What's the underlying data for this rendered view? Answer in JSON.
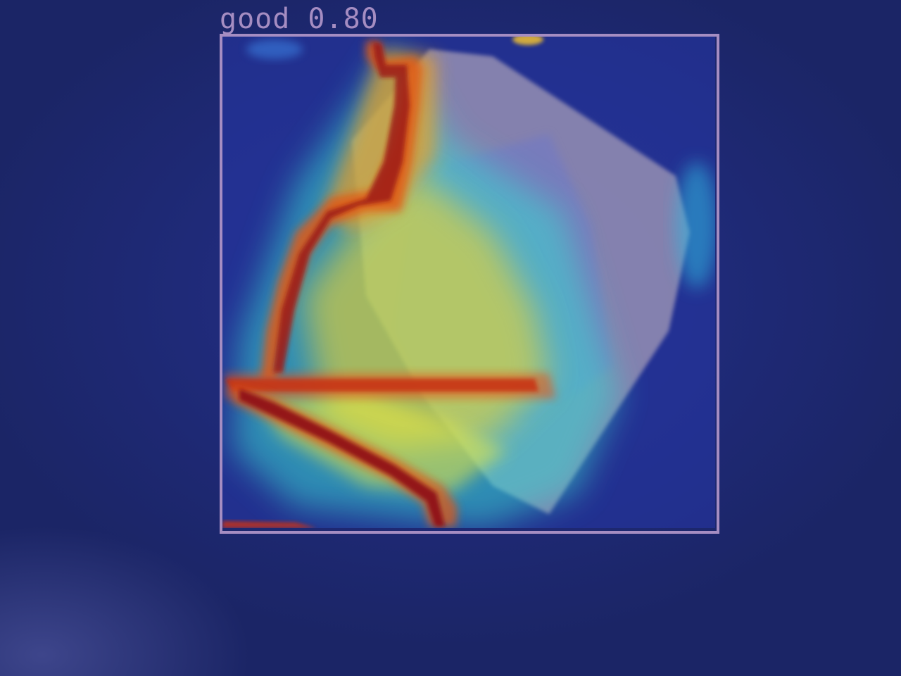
{
  "detection": {
    "label_text": "good 0.80",
    "class_name": "good",
    "confidence": 0.8
  },
  "colors": {
    "box_outline": "#a58dc2",
    "background": "#1f2a6e",
    "heat_high": "#8b0d12",
    "heat_mid": "#f0d020",
    "heat_low": "#3cd8c8",
    "crystal": "#9e96b4"
  }
}
